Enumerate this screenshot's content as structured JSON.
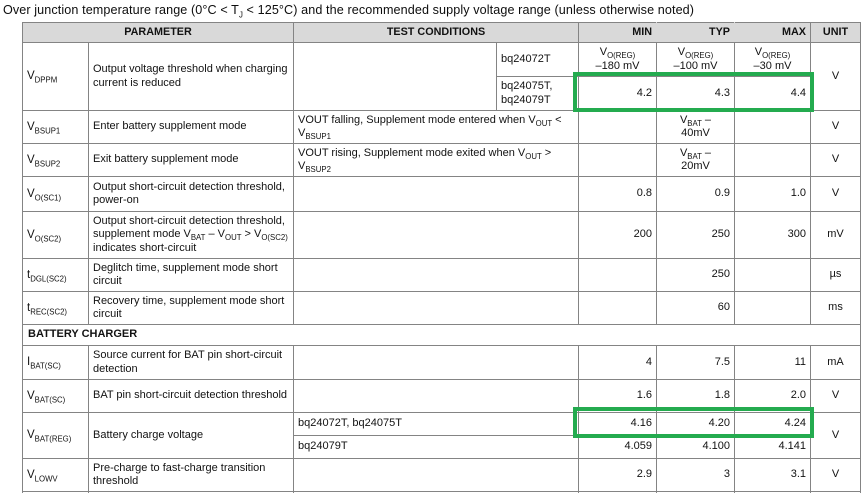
{
  "page": {
    "title": "Over junction temperature range (0°C < T~J~ < 125°C) and the recommended supply voltage range (unless otherwise noted)"
  },
  "colors": {
    "highlight_green": "#24ab4f",
    "header_bg": "#d9d9d9",
    "grid_border": "#848484",
    "grid_border_light": "#cfcfcf"
  },
  "table": {
    "header": {
      "parameter": "PARAMETER",
      "test_conditions": "TEST CONDITIONS",
      "min": "MIN",
      "typ": "TYP",
      "max": "MAX",
      "unit": "UNIT"
    },
    "section_battery_charger": "BATTERY CHARGER",
    "rows": {
      "vdppm": {
        "symbol": "V~DPPM~",
        "parameter": "Output voltage threshold when charging current is reduced",
        "condition": "",
        "variants": [
          {
            "device": "bq24072T",
            "min": "V~O(REG)~\n–180 mV",
            "typ": "V~O(REG)~\n–100 mV",
            "max": "V~O(REG)~\n–30 mV"
          },
          {
            "device": "bq24075T,\nbq24079T",
            "min": "4.2",
            "typ": "4.3",
            "max": "4.4"
          }
        ],
        "unit": "V"
      },
      "vbsup1": {
        "symbol": "V~BSUP1~",
        "parameter": "Enter battery supplement mode",
        "condition": "VOUT falling, Supplement mode entered when V~OUT~ < V~BSUP1~",
        "min": "",
        "typ": "V~BAT~ –\n40mV",
        "max": "",
        "unit": "V"
      },
      "vbsup2": {
        "symbol": "V~BSUP2~",
        "parameter": "Exit battery supplement mode",
        "condition": "VOUT rising, Supplement mode exited when V~OUT~ > V~BSUP2~",
        "min": "",
        "typ": "V~BAT~ –\n20mV",
        "max": "",
        "unit": "V"
      },
      "vosc1": {
        "symbol": "V~O(SC1)~",
        "parameter": "Output short-circuit detection threshold, power-on",
        "condition": "",
        "min": "0.8",
        "typ": "0.9",
        "max": "1.0",
        "unit": "V"
      },
      "vosc2": {
        "symbol": "V~O(SC2)~",
        "parameter": "Output short-circuit detection threshold, supplement mode V~BAT~ – V~OUT~ > V~O(SC2)~ indicates short-circuit",
        "condition": "",
        "min": "200",
        "typ": "250",
        "max": "300",
        "unit": "mV"
      },
      "tdgl_sc2": {
        "symbol": "t~DGL(SC2)~",
        "parameter": "Deglitch time, supplement mode short circuit",
        "condition": "",
        "min": "",
        "typ": "250",
        "max": "",
        "unit": "µs"
      },
      "trec_sc2": {
        "symbol": "t~REC(SC2)~",
        "parameter": "Recovery time, supplement mode short circuit",
        "condition": "",
        "min": "",
        "typ": "60",
        "max": "",
        "unit": "ms"
      },
      "ibat_sc": {
        "symbol": "I~BAT(SC)~",
        "parameter": "Source current for BAT pin short-circuit detection",
        "condition": "",
        "min": "4",
        "typ": "7.5",
        "max": "11",
        "unit": "mA"
      },
      "vbat_sc": {
        "symbol": "V~BAT(SC)~",
        "parameter": "BAT pin short-circuit detection threshold",
        "condition": "",
        "min": "1.6",
        "typ": "1.8",
        "max": "2.0",
        "unit": "V"
      },
      "vbat_reg": {
        "symbol": "V~BAT(REG)~",
        "parameter": "Battery charge voltage",
        "variants": [
          {
            "device": "bq24072T, bq24075T",
            "min": "4.16",
            "typ": "4.20",
            "max": "4.24"
          },
          {
            "device": "bq24079T",
            "min": "4.059",
            "typ": "4.100",
            "max": "4.141"
          }
        ],
        "unit": "V"
      },
      "vlowv": {
        "symbol": "V~LOWV~",
        "parameter": "Pre-charge to fast-charge transition threshold",
        "condition": "",
        "min": "2.9",
        "typ": "3",
        "max": "3.1",
        "unit": "V"
      }
    }
  }
}
